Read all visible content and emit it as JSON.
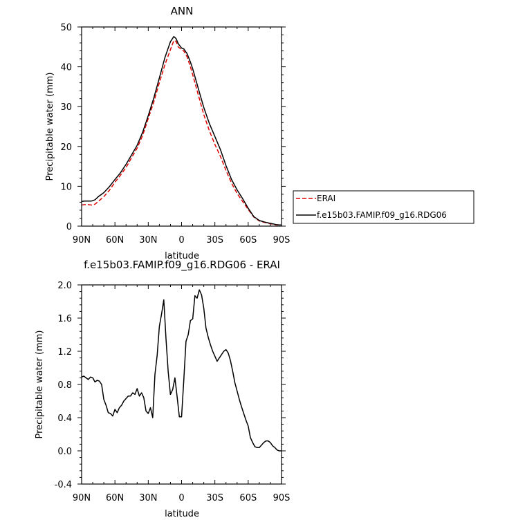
{
  "chart_data": [
    {
      "type": "line",
      "title": "ANN",
      "xlabel": "latitude",
      "ylabel": "Precipitable water (mm)",
      "xlim": [
        90,
        -90
      ],
      "ylim": [
        0,
        50
      ],
      "x_ticks": [
        90,
        60,
        30,
        0,
        -30,
        -60,
        -90
      ],
      "x_tick_labels": [
        "90N",
        "60N",
        "30N",
        "0",
        "30S",
        "60S",
        "90S"
      ],
      "y_ticks": [
        0,
        10,
        20,
        30,
        40,
        50
      ],
      "y_tick_labels": [
        "0",
        "10",
        "20",
        "30",
        "40",
        "50"
      ],
      "grid": false,
      "legend_position": "right",
      "series": [
        {
          "name": "ERAI",
          "color": "#e00000",
          "dash": "dashed",
          "x": [
            90,
            87,
            84,
            81,
            78,
            75,
            70,
            65,
            60,
            55,
            50,
            45,
            40,
            35,
            30,
            25,
            20,
            15,
            10,
            7,
            5,
            3,
            0,
            -2,
            -5,
            -8,
            -10,
            -15,
            -20,
            -25,
            -30,
            -35,
            -40,
            -45,
            -50,
            -55,
            -60,
            -65,
            -70,
            -75,
            -80,
            -85,
            -88,
            -90
          ],
          "y": [
            5.3,
            5.4,
            5.4,
            5.3,
            5.5,
            6.2,
            7.4,
            9.0,
            11.0,
            12.8,
            14.7,
            17.2,
            19.6,
            22.8,
            27.0,
            31.2,
            36.0,
            40.5,
            44.3,
            46.6,
            46.4,
            45.0,
            44.3,
            44.0,
            42.5,
            40.0,
            38.0,
            33.0,
            28.0,
            24.0,
            20.5,
            17.5,
            14.0,
            10.8,
            8.2,
            6.2,
            4.2,
            2.3,
            1.3,
            0.9,
            0.6,
            0.3,
            0.3,
            0.3
          ]
        },
        {
          "name": "f.e15b03.FAMIP.f09_g16.RDG06",
          "color": "#000000",
          "dash": "solid",
          "x": [
            90,
            87,
            84,
            81,
            78,
            75,
            70,
            65,
            60,
            55,
            50,
            45,
            40,
            35,
            30,
            25,
            20,
            15,
            10,
            7,
            5,
            3,
            0,
            -2,
            -5,
            -8,
            -10,
            -15,
            -20,
            -25,
            -30,
            -35,
            -40,
            -45,
            -50,
            -55,
            -60,
            -65,
            -70,
            -75,
            -80,
            -85,
            -88,
            -90
          ],
          "y": [
            6.2,
            6.3,
            6.3,
            6.3,
            6.6,
            7.4,
            8.4,
            9.9,
            11.7,
            13.4,
            15.5,
            17.9,
            20.3,
            23.6,
            27.7,
            32.2,
            37.2,
            42.3,
            46.3,
            47.6,
            47.1,
            45.8,
            44.7,
            44.5,
            43.3,
            41.2,
            39.5,
            34.6,
            29.8,
            25.8,
            22.5,
            19.2,
            15.2,
            11.7,
            9.1,
            6.9,
            4.5,
            2.4,
            1.4,
            1.0,
            0.7,
            0.4,
            0.3,
            0.3
          ]
        }
      ]
    },
    {
      "type": "line",
      "title": "f.e15b03.FAMIP.f09_g16.RDG06 - ERAI",
      "xlabel": "latitude",
      "ylabel": "Precipitable water (mm)",
      "xlim": [
        90,
        -90
      ],
      "ylim": [
        -0.4,
        2.0
      ],
      "x_ticks": [
        90,
        60,
        30,
        0,
        -30,
        -60,
        -90
      ],
      "x_tick_labels": [
        "90N",
        "60N",
        "30N",
        "0",
        "30S",
        "60S",
        "90S"
      ],
      "y_ticks": [
        -0.4,
        0.0,
        0.4,
        0.8,
        1.2,
        1.6,
        2.0
      ],
      "y_tick_labels": [
        "-0.4",
        "0.0",
        "0.4",
        "0.8",
        "1.2",
        "1.6",
        "2.0"
      ],
      "grid": false,
      "series": [
        {
          "name": "",
          "color": "#000000",
          "dash": "solid",
          "x": [
            90,
            88,
            86,
            84,
            82,
            80,
            78,
            76,
            74,
            72,
            70,
            68,
            66,
            64,
            62,
            60,
            58,
            56,
            54,
            52,
            50,
            48,
            46,
            44,
            42,
            40,
            38,
            36,
            34,
            32,
            30,
            28,
            26,
            24,
            22,
            20,
            18,
            16,
            14,
            12,
            10,
            8,
            6,
            4,
            2,
            0,
            -2,
            -4,
            -6,
            -8,
            -10,
            -12,
            -14,
            -16,
            -18,
            -20,
            -22,
            -24,
            -26,
            -28,
            -30,
            -32,
            -34,
            -36,
            -38,
            -40,
            -42,
            -44,
            -46,
            -48,
            -50,
            -52,
            -54,
            -56,
            -58,
            -60,
            -62,
            -64,
            -66,
            -68,
            -70,
            -72,
            -74,
            -76,
            -78,
            -80,
            -82,
            -84,
            -86,
            -88,
            -90
          ],
          "y": [
            0.89,
            0.9,
            0.88,
            0.86,
            0.89,
            0.88,
            0.83,
            0.85,
            0.84,
            0.8,
            0.62,
            0.55,
            0.46,
            0.45,
            0.42,
            0.5,
            0.46,
            0.52,
            0.55,
            0.6,
            0.63,
            0.66,
            0.66,
            0.7,
            0.68,
            0.75,
            0.66,
            0.7,
            0.64,
            0.48,
            0.45,
            0.52,
            0.4,
            0.92,
            1.15,
            1.5,
            1.65,
            1.82,
            1.35,
            0.95,
            0.68,
            0.74,
            0.88,
            0.65,
            0.41,
            0.41,
            0.85,
            1.32,
            1.4,
            1.57,
            1.59,
            1.87,
            1.84,
            1.94,
            1.88,
            1.72,
            1.48,
            1.37,
            1.28,
            1.2,
            1.14,
            1.08,
            1.12,
            1.16,
            1.2,
            1.22,
            1.18,
            1.09,
            0.96,
            0.82,
            0.72,
            0.62,
            0.53,
            0.45,
            0.37,
            0.3,
            0.16,
            0.1,
            0.05,
            0.04,
            0.04,
            0.07,
            0.1,
            0.12,
            0.12,
            0.1,
            0.06,
            0.04,
            0.01,
            0.0,
            0.0
          ]
        }
      ]
    }
  ]
}
